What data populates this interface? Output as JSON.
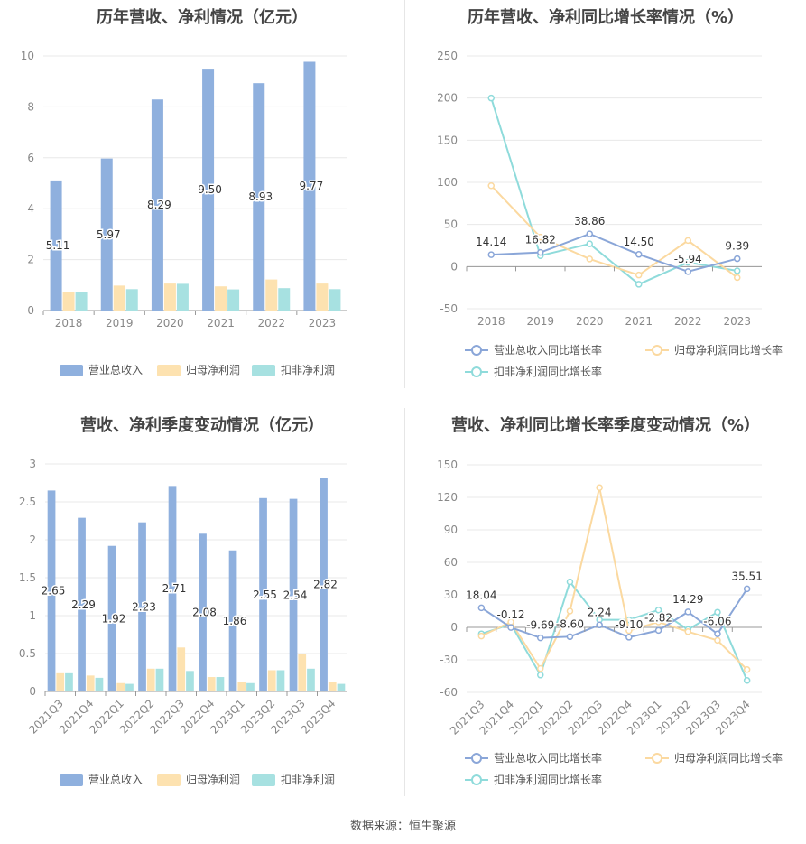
{
  "source": "数据来源：恒生聚源",
  "colors": {
    "blue": "#8fb0de",
    "orange": "#fde2b0",
    "teal": "#a7e1e1",
    "blue_line": "#8aa6d8",
    "orange_line": "#fbd9a0",
    "teal_line": "#8fdbdb"
  },
  "chart_data": [
    {
      "type": "bar",
      "title": "历年营收、净利情况（亿元）",
      "categories": [
        "2018",
        "2019",
        "2020",
        "2021",
        "2022",
        "2023"
      ],
      "ylim": [
        0,
        10
      ],
      "yticks": [
        "0",
        "2",
        "4",
        "6",
        "8",
        "10"
      ],
      "legend_position": "bottom",
      "series": [
        {
          "name": "营业总收入",
          "values": [
            5.11,
            5.97,
            8.29,
            9.5,
            8.93,
            9.77
          ],
          "labels": [
            "5.11",
            "5.97",
            "8.29",
            "9.50",
            "8.93",
            "9.77"
          ]
        },
        {
          "name": "归母净利润",
          "values": [
            0.72,
            0.98,
            1.06,
            0.95,
            1.22,
            1.06
          ]
        },
        {
          "name": "扣非净利润",
          "values": [
            0.74,
            0.84,
            1.05,
            0.83,
            0.88,
            0.84
          ]
        }
      ]
    },
    {
      "type": "line",
      "title": "历年营收、净利同比增长率情况（%）",
      "categories": [
        "2018",
        "2019",
        "2020",
        "2021",
        "2022",
        "2023"
      ],
      "ylim": [
        -50,
        250
      ],
      "yticks": [
        "-50",
        "0",
        "50",
        "100",
        "150",
        "200",
        "250"
      ],
      "legend_position": "bottom",
      "series": [
        {
          "name": "营业总收入同比增长率",
          "values": [
            14.14,
            16.82,
            38.86,
            14.5,
            -5.94,
            9.39
          ],
          "labels": [
            "14.14",
            "16.82",
            "38.86",
            "14.50",
            "-5.94",
            "9.39"
          ]
        },
        {
          "name": "归母净利润同比增长率",
          "values": [
            96,
            35,
            9,
            -10,
            31,
            -13
          ]
        },
        {
          "name": "扣非净利润同比增长率",
          "values": [
            200,
            13,
            27,
            -21,
            5,
            -5
          ]
        }
      ]
    },
    {
      "type": "bar",
      "title": "营收、净利季度变动情况（亿元）",
      "categories": [
        "2021Q3",
        "2021Q4",
        "2022Q1",
        "2022Q2",
        "2022Q3",
        "2022Q4",
        "2023Q1",
        "2023Q2",
        "2023Q3",
        "2023Q4"
      ],
      "ylim": [
        0,
        3
      ],
      "yticks": [
        "0",
        "0.5",
        "1",
        "1.5",
        "2",
        "2.5",
        "3"
      ],
      "legend_position": "bottom",
      "series": [
        {
          "name": "营业总收入",
          "values": [
            2.65,
            2.29,
            1.92,
            2.23,
            2.71,
            2.08,
            1.86,
            2.55,
            2.54,
            2.82
          ],
          "labels": [
            "2.65",
            "2.29",
            "1.92",
            "2.23",
            "2.71",
            "2.08",
            "1.86",
            "2.55",
            "2.54",
            "2.82"
          ]
        },
        {
          "name": "归母净利润",
          "values": [
            0.24,
            0.21,
            0.11,
            0.3,
            0.58,
            0.19,
            0.12,
            0.28,
            0.5,
            0.12
          ]
        },
        {
          "name": "扣非净利润",
          "values": [
            0.24,
            0.18,
            0.1,
            0.3,
            0.27,
            0.19,
            0.11,
            0.28,
            0.3,
            0.1
          ]
        }
      ]
    },
    {
      "type": "line",
      "title": "营收、净利同比增长率季度变动情况（%）",
      "categories": [
        "2021Q3",
        "2021Q4",
        "2022Q1",
        "2022Q2",
        "2022Q3",
        "2022Q4",
        "2023Q1",
        "2023Q2",
        "2023Q3",
        "2023Q4"
      ],
      "ylim": [
        -60,
        150
      ],
      "yticks": [
        "-60",
        "-30",
        "0",
        "30",
        "60",
        "90",
        "120",
        "150"
      ],
      "legend_position": "bottom",
      "series": [
        {
          "name": "营业总收入同比增长率",
          "values": [
            18.04,
            -0.12,
            -9.69,
            -8.6,
            2.24,
            -9.1,
            -2.82,
            14.29,
            -6.06,
            35.51
          ],
          "labels": [
            "18.04",
            "-0.12",
            "-9.69",
            "-8.60",
            "2.24",
            "-9.10",
            "-2.82",
            "14.29",
            "-6.06",
            "35.51"
          ]
        },
        {
          "name": "归母净利润同比增长率",
          "values": [
            -8,
            5,
            -38,
            15,
            129,
            -3,
            5,
            -4,
            -12,
            -39
          ]
        },
        {
          "name": "扣非净利润同比增长率",
          "values": [
            -6,
            3,
            -44,
            42,
            7,
            7,
            16,
            -2,
            14,
            -49
          ]
        }
      ]
    }
  ]
}
